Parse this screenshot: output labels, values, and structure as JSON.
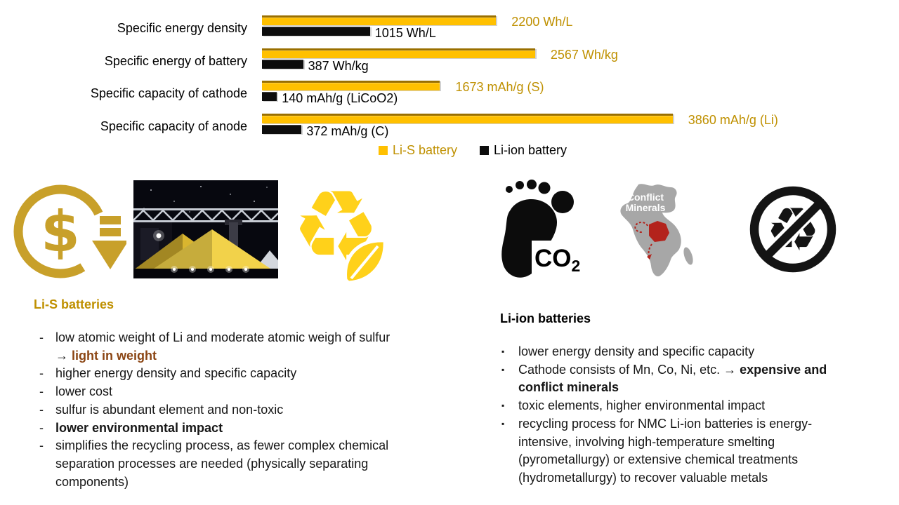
{
  "colors": {
    "accent_gold_text": "#BF9000",
    "bar_yellow": "#FFC000",
    "bar_black": "#0D0D0D",
    "highlight_brown": "#8B4513",
    "icon_gold": "#C8A02A",
    "icon_bright_yellow": "#FFD11A",
    "map_gray": "#A7A7A7",
    "map_red": "#B3231C"
  },
  "chart_data": {
    "type": "bar",
    "orientation": "horizontal",
    "categories": [
      "Specific energy density",
      "Specific energy of battery",
      "Specific capacity of cathode",
      "Specific capacity of anode"
    ],
    "series": [
      {
        "name": "Li-S battery",
        "color": "#FFC000",
        "values": [
          2200,
          2567,
          1673,
          3860
        ],
        "value_labels": [
          "2200 Wh/L",
          "2567 Wh/kg",
          "1673 mAh/g (S)",
          "3860 mAh/g (Li)"
        ]
      },
      {
        "name": "Li-ion battery",
        "color": "#0D0D0D",
        "values": [
          1015,
          387,
          140,
          372
        ],
        "value_labels": [
          "1015 Wh/L",
          "387 Wh/kg",
          "140 mAh/g (LiCoO2)",
          "372 mAh/g (C)"
        ]
      }
    ],
    "xlim": [
      0,
      4000
    ],
    "grid": false,
    "legend_position": "bottom-center"
  },
  "icons": {
    "cost_reduction": "cost-reduction-dollar-down-icon",
    "sulfur_photo": "sulfur-piles-night-photo",
    "eco_recycling": "recycling-leaf-icon",
    "co2_footprint": "co2-footprint-icon",
    "conflict_minerals": "conflict-minerals-africa-map-icon",
    "non_recyclable": "no-recycling-icon"
  },
  "glyphs": {
    "recycle": "♻",
    "dollar": "$"
  },
  "co2_label": {
    "main": "CO",
    "sub": "2"
  },
  "map_label": {
    "line1": "Conflict",
    "line2": "Minerals"
  },
  "left_section": {
    "heading": "Li-S batteries",
    "bullet_char": "-",
    "items": [
      {
        "text": "low atomic weight of Li and moderate atomic weigh of sulfur → ",
        "highlight": "light in weight"
      },
      {
        "text": "higher energy density and specific capacity"
      },
      {
        "text": "lower cost"
      },
      {
        "text": "sulfur is abundant element and non-toxic"
      },
      {
        "bold": "lower environmental impact"
      },
      {
        "text": "simplifies the recycling process, as fewer complex chemical separation processes are needed (physically separating components)"
      }
    ]
  },
  "right_section": {
    "heading": "Li-ion batteries",
    "bullet_char": "▪",
    "items": [
      {
        "text": "lower energy density and specific capacity"
      },
      {
        "text": "Cathode consists of Mn, Co, Ni, etc. → ",
        "bold": "expensive and conflict minerals"
      },
      {
        "text": "toxic elements, higher environmental impact"
      },
      {
        "text": "recycling process for NMC Li-ion batteries is energy-intensive, involving high-temperature smelting (pyrometallurgy) or extensive chemical treatments (hydrometallurgy) to recover valuable metals"
      }
    ]
  }
}
